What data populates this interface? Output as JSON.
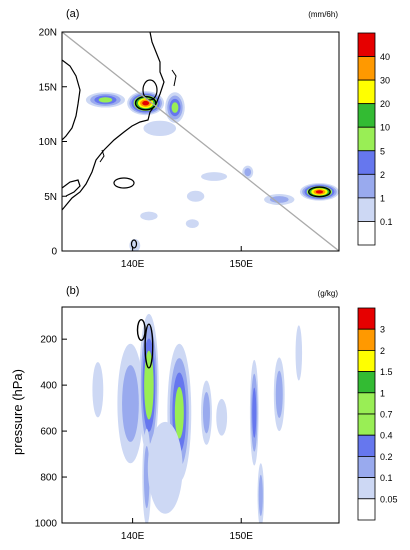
{
  "chart_data": [
    {
      "type": "heatmap",
      "panel_label": "(a)",
      "units": "(mm/6h)",
      "x_ticks": [
        {
          "value": 140,
          "label": "140E"
        },
        {
          "value": 150,
          "label": "150E"
        }
      ],
      "y_ticks": [
        {
          "value": 0,
          "label": "0"
        },
        {
          "value": 5,
          "label": "5N"
        },
        {
          "value": 10,
          "label": "10N"
        },
        {
          "value": 15,
          "label": "15N"
        },
        {
          "value": 20,
          "label": "20N"
        }
      ],
      "xlim": [
        133.5,
        159
      ],
      "ylim": [
        0,
        20
      ],
      "colorbar_levels": [
        "40",
        "30",
        "20",
        "10",
        "5",
        "2",
        "1",
        "0.1"
      ],
      "colorbar_colors": [
        "#e60000",
        "#ff9900",
        "#ffff00",
        "#33bb33",
        "#99ee55",
        "#6677ee",
        "#99aaee",
        "#cdd8f4",
        "#ffffff"
      ],
      "cross_section_line": {
        "from": [
          133.5,
          20
        ],
        "to": [
          159,
          0
        ]
      },
      "features": [
        {
          "x": 141.2,
          "y": 13.5,
          "rx": 1.7,
          "ry": 1.1,
          "peak_level": 8
        },
        {
          "x": 143.9,
          "y": 13.1,
          "rx": 0.9,
          "ry": 1.4,
          "peak_level": 4
        },
        {
          "x": 137.5,
          "y": 13.8,
          "rx": 1.8,
          "ry": 0.7,
          "peak_level": 4
        },
        {
          "x": 142.5,
          "y": 11.2,
          "rx": 1.5,
          "ry": 0.7,
          "peak_level": 1
        },
        {
          "x": 150.6,
          "y": 7.2,
          "rx": 0.5,
          "ry": 0.6,
          "peak_level": 2
        },
        {
          "x": 147.5,
          "y": 6.8,
          "rx": 1.2,
          "ry": 0.4,
          "peak_level": 1
        },
        {
          "x": 153.5,
          "y": 4.7,
          "rx": 1.4,
          "ry": 0.5,
          "peak_level": 2
        },
        {
          "x": 157.2,
          "y": 5.4,
          "rx": 1.8,
          "ry": 0.8,
          "peak_level": 8
        },
        {
          "x": 145.8,
          "y": 5.0,
          "rx": 0.8,
          "ry": 0.5,
          "peak_level": 1
        },
        {
          "x": 141.5,
          "y": 3.2,
          "rx": 0.8,
          "ry": 0.4,
          "peak_level": 1
        },
        {
          "x": 140.2,
          "y": 0.5,
          "rx": 0.5,
          "ry": 0.6,
          "peak_level": 1
        },
        {
          "x": 145.5,
          "y": 2.5,
          "rx": 0.6,
          "ry": 0.4,
          "peak_level": 1
        }
      ]
    },
    {
      "type": "heatmap",
      "panel_label": "(b)",
      "units": "(g/kg)",
      "ylabel": "pressure (hPa)",
      "x_ticks": [
        {
          "value": 140,
          "label": "140E"
        },
        {
          "value": 150,
          "label": "150E"
        }
      ],
      "y_ticks": [
        {
          "value": 200,
          "label": "200"
        },
        {
          "value": 400,
          "label": "400"
        },
        {
          "value": 600,
          "label": "600"
        },
        {
          "value": 800,
          "label": "800"
        },
        {
          "value": 1000,
          "label": "1000"
        }
      ],
      "xlim": [
        133.5,
        159
      ],
      "ylim": [
        1000,
        60
      ],
      "colorbar_levels": [
        "3",
        "2",
        "1.5",
        "1",
        "0.7",
        "0.4",
        "0.2",
        "0.1",
        "0.05"
      ],
      "colorbar_colors": [
        "#e60000",
        "#ff9900",
        "#ffff00",
        "#33bb33",
        "#99ee55",
        "#99ee55",
        "#6677ee",
        "#99aaee",
        "#cdd8f4",
        "#ffffff"
      ],
      "features": [
        {
          "x": 139.8,
          "p": 480,
          "rx": 1.2,
          "rp": 260,
          "peak_level": 2
        },
        {
          "x": 141.5,
          "p": 400,
          "rx": 0.9,
          "rp": 310,
          "peak_level": 5
        },
        {
          "x": 141.3,
          "p": 800,
          "rx": 0.4,
          "rp": 210,
          "peak_level": 2
        },
        {
          "x": 144.3,
          "p": 520,
          "rx": 1.1,
          "rp": 300,
          "peak_level": 4
        },
        {
          "x": 146.8,
          "p": 520,
          "rx": 0.5,
          "rp": 140,
          "peak_level": 2
        },
        {
          "x": 148.2,
          "p": 540,
          "rx": 0.5,
          "rp": 80,
          "peak_level": 1
        },
        {
          "x": 151.2,
          "p": 520,
          "rx": 0.4,
          "rp": 230,
          "peak_level": 3
        },
        {
          "x": 151.8,
          "p": 880,
          "rx": 0.3,
          "rp": 140,
          "peak_level": 2
        },
        {
          "x": 153.5,
          "p": 440,
          "rx": 0.5,
          "rp": 160,
          "peak_level": 2
        },
        {
          "x": 136.8,
          "p": 420,
          "rx": 0.5,
          "rp": 120,
          "peak_level": 1
        },
        {
          "x": 143.0,
          "p": 760,
          "rx": 1.6,
          "rp": 200,
          "peak_level": 1
        },
        {
          "x": 155.3,
          "p": 260,
          "rx": 0.3,
          "rp": 120,
          "peak_level": 1
        }
      ]
    }
  ]
}
